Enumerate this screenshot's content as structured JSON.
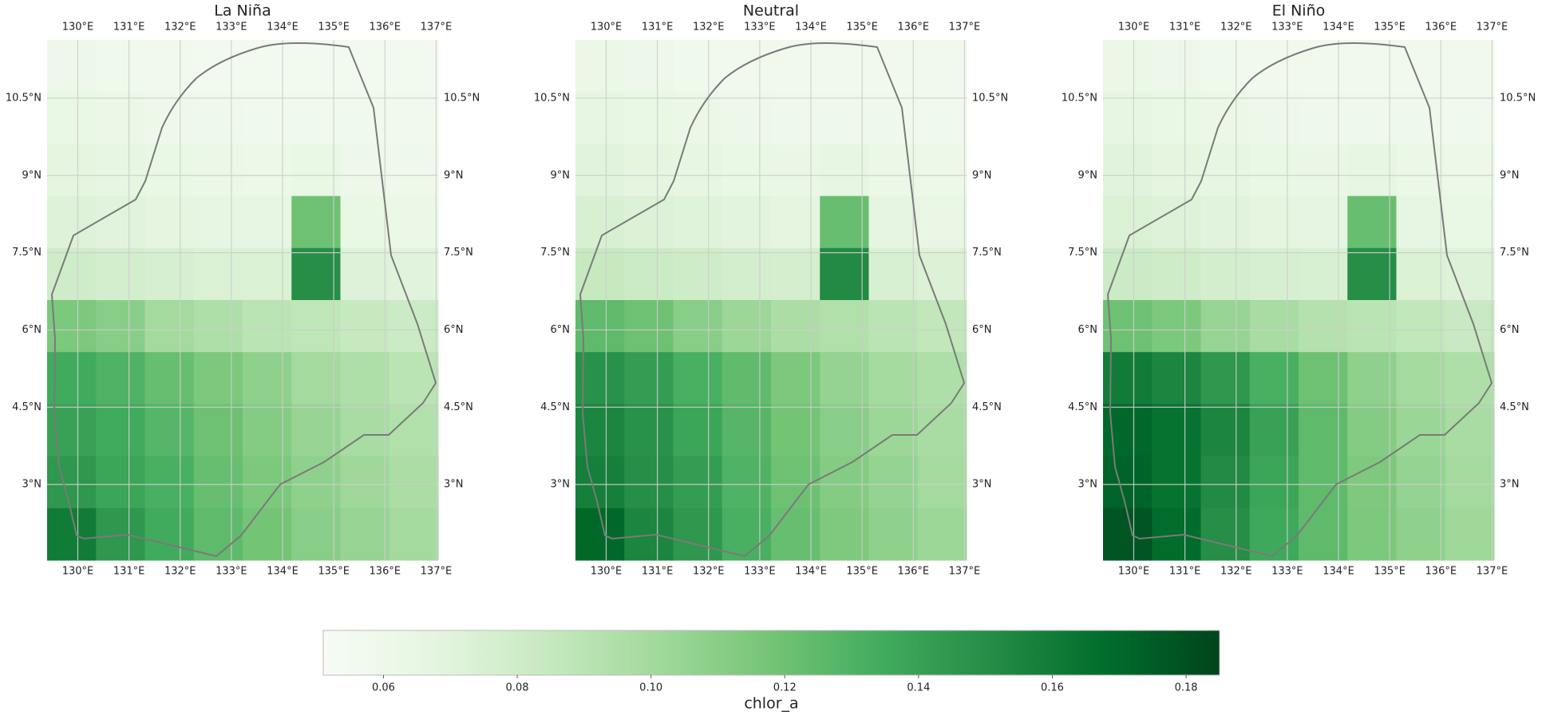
{
  "chart_data": [
    {
      "type": "heatmap",
      "title": "La Niña",
      "xlim": [
        129.4,
        137.04
      ],
      "ylim": [
        1.53,
        11.63
      ],
      "xticks": [
        {
          "value": 130,
          "label": "130°E"
        },
        {
          "value": 131,
          "label": "131°E"
        },
        {
          "value": 132,
          "label": "132°E"
        },
        {
          "value": 133,
          "label": "133°E"
        },
        {
          "value": 134,
          "label": "134°E"
        },
        {
          "value": 135,
          "label": "135°E"
        },
        {
          "value": 136,
          "label": "136°E"
        },
        {
          "value": 137,
          "label": "137°E"
        }
      ],
      "yticks": [
        {
          "value": 3,
          "label": "3°N"
        },
        {
          "value": 4.5,
          "label": "4.5°N"
        },
        {
          "value": 6,
          "label": "6°N"
        },
        {
          "value": 7.5,
          "label": "7.5°N"
        },
        {
          "value": 9,
          "label": "9°N"
        },
        {
          "value": 10.5,
          "label": "10.5°N"
        }
      ],
      "z": [
        [
          0.06,
          0.058,
          0.057,
          0.056,
          0.056,
          0.056,
          0.056,
          0.056
        ],
        [
          0.064,
          0.062,
          0.06,
          0.059,
          0.058,
          0.058,
          0.058,
          0.057
        ],
        [
          0.068,
          0.066,
          0.064,
          0.062,
          0.061,
          0.064,
          0.06,
          0.059
        ],
        [
          0.072,
          0.07,
          0.068,
          0.066,
          0.066,
          0.12,
          0.064,
          0.062
        ],
        [
          0.08,
          0.078,
          0.076,
          0.074,
          0.074,
          0.15,
          0.072,
          0.07
        ],
        [
          0.115,
          0.11,
          0.1,
          0.095,
          0.09,
          0.088,
          0.085,
          0.082
        ],
        [
          0.135,
          0.13,
          0.122,
          0.115,
          0.108,
          0.1,
          0.095,
          0.09
        ],
        [
          0.14,
          0.135,
          0.128,
          0.12,
          0.112,
          0.105,
          0.098,
          0.094
        ],
        [
          0.145,
          0.138,
          0.132,
          0.122,
          0.115,
          0.108,
          0.102,
          0.097
        ],
        [
          0.16,
          0.145,
          0.135,
          0.125,
          0.118,
          0.11,
          0.105,
          0.1
        ]
      ]
    },
    {
      "type": "heatmap",
      "title": "Neutral",
      "xlim": [
        129.4,
        137.04
      ],
      "ylim": [
        1.53,
        11.63
      ],
      "xticks": [
        {
          "value": 130,
          "label": "130°E"
        },
        {
          "value": 131,
          "label": "131°E"
        },
        {
          "value": 132,
          "label": "132°E"
        },
        {
          "value": 133,
          "label": "133°E"
        },
        {
          "value": 134,
          "label": "134°E"
        },
        {
          "value": 135,
          "label": "135°E"
        },
        {
          "value": 136,
          "label": "136°E"
        },
        {
          "value": 137,
          "label": "137°E"
        }
      ],
      "yticks": [
        {
          "value": 3,
          "label": "3°N"
        },
        {
          "value": 4.5,
          "label": "4.5°N"
        },
        {
          "value": 6,
          "label": "6°N"
        },
        {
          "value": 7.5,
          "label": "7.5°N"
        },
        {
          "value": 9,
          "label": "9°N"
        },
        {
          "value": 10.5,
          "label": "10.5°N"
        }
      ],
      "z": [
        [
          0.062,
          0.06,
          0.058,
          0.057,
          0.057,
          0.057,
          0.057,
          0.057
        ],
        [
          0.066,
          0.064,
          0.062,
          0.06,
          0.059,
          0.059,
          0.059,
          0.058
        ],
        [
          0.07,
          0.068,
          0.066,
          0.064,
          0.063,
          0.066,
          0.062,
          0.061
        ],
        [
          0.075,
          0.073,
          0.071,
          0.069,
          0.068,
          0.122,
          0.067,
          0.065
        ],
        [
          0.085,
          0.082,
          0.08,
          0.078,
          0.077,
          0.152,
          0.075,
          0.073
        ],
        [
          0.125,
          0.12,
          0.11,
          0.103,
          0.097,
          0.094,
          0.09,
          0.087
        ],
        [
          0.148,
          0.142,
          0.132,
          0.124,
          0.115,
          0.106,
          0.1,
          0.095
        ],
        [
          0.155,
          0.148,
          0.138,
          0.128,
          0.118,
          0.11,
          0.103,
          0.098
        ],
        [
          0.158,
          0.15,
          0.142,
          0.13,
          0.12,
          0.112,
          0.106,
          0.1
        ],
        [
          0.17,
          0.155,
          0.145,
          0.132,
          0.122,
          0.114,
          0.108,
          0.103
        ]
      ]
    },
    {
      "type": "heatmap",
      "title": "El Niño",
      "xlim": [
        129.4,
        137.04
      ],
      "ylim": [
        1.53,
        11.63
      ],
      "xticks": [
        {
          "value": 130,
          "label": "130°E"
        },
        {
          "value": 131,
          "label": "131°E"
        },
        {
          "value": 132,
          "label": "132°E"
        },
        {
          "value": 133,
          "label": "133°E"
        },
        {
          "value": 134,
          "label": "134°E"
        },
        {
          "value": 135,
          "label": "135°E"
        },
        {
          "value": 136,
          "label": "136°E"
        },
        {
          "value": 137,
          "label": "137°E"
        }
      ],
      "yticks": [
        {
          "value": 3,
          "label": "3°N"
        },
        {
          "value": 4.5,
          "label": "4.5°N"
        },
        {
          "value": 6,
          "label": "6°N"
        },
        {
          "value": 7.5,
          "label": "7.5°N"
        },
        {
          "value": 9,
          "label": "9°N"
        },
        {
          "value": 10.5,
          "label": "10.5°N"
        }
      ],
      "z": [
        [
          0.062,
          0.06,
          0.058,
          0.057,
          0.057,
          0.057,
          0.057,
          0.057
        ],
        [
          0.066,
          0.064,
          0.062,
          0.06,
          0.059,
          0.059,
          0.059,
          0.058
        ],
        [
          0.07,
          0.068,
          0.066,
          0.064,
          0.063,
          0.066,
          0.062,
          0.061
        ],
        [
          0.074,
          0.072,
          0.07,
          0.068,
          0.067,
          0.122,
          0.066,
          0.064
        ],
        [
          0.082,
          0.08,
          0.078,
          0.076,
          0.075,
          0.15,
          0.074,
          0.072
        ],
        [
          0.12,
          0.115,
          0.105,
          0.098,
          0.093,
          0.09,
          0.087,
          0.084
        ],
        [
          0.16,
          0.155,
          0.145,
          0.132,
          0.12,
          0.108,
          0.1,
          0.095
        ],
        [
          0.17,
          0.165,
          0.155,
          0.14,
          0.125,
          0.112,
          0.104,
          0.098
        ],
        [
          0.172,
          0.165,
          0.152,
          0.138,
          0.125,
          0.114,
          0.106,
          0.1
        ],
        [
          0.178,
          0.168,
          0.15,
          0.136,
          0.125,
          0.115,
          0.108,
          0.102
        ]
      ]
    }
  ],
  "colorbar": {
    "label": "chlor_a",
    "colormap": "Greens",
    "clim": [
      0.051,
      0.185
    ],
    "ticks": [
      0.06,
      0.08,
      {
        "value": 0.1,
        "label": "0.10"
      },
      0.12,
      0.14,
      0.16,
      0.18
    ]
  }
}
